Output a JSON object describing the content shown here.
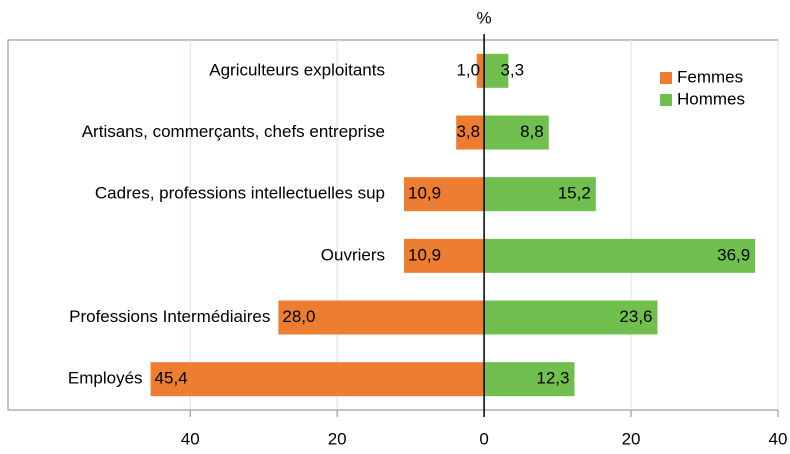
{
  "chart_data": {
    "type": "bar",
    "orientation": "horizontal",
    "axis_title": "%",
    "categories": [
      "Agriculteurs exploitants",
      "Artisans, commerçants, chefs entreprise",
      "Cadres, professions intellectuelles sup",
      "Ouvriers",
      "Professions Intermédiaires",
      "Employés"
    ],
    "series": [
      {
        "name": "Femmes",
        "color": "#ed7d31",
        "values": [
          -1.0,
          -3.8,
          -10.9,
          -10.9,
          -28.0,
          -45.4
        ],
        "value_labels": [
          "1,0",
          "3,8",
          "10,9",
          "10,9",
          "28,0",
          "45,4"
        ]
      },
      {
        "name": "Hommes",
        "color": "#70bf4f",
        "values": [
          3.3,
          8.8,
          15.2,
          36.9,
          23.6,
          12.3
        ],
        "value_labels": [
          "3,3",
          "8,8",
          "15,2",
          "36,9",
          "23,6",
          "12,3"
        ]
      }
    ],
    "xlim": [
      -64.8,
      40
    ],
    "xticks": [
      {
        "value": -40,
        "label": "40"
      },
      {
        "value": -20,
        "label": "20"
      },
      0,
      20,
      40
    ],
    "grid": true,
    "legend": "upper right"
  }
}
